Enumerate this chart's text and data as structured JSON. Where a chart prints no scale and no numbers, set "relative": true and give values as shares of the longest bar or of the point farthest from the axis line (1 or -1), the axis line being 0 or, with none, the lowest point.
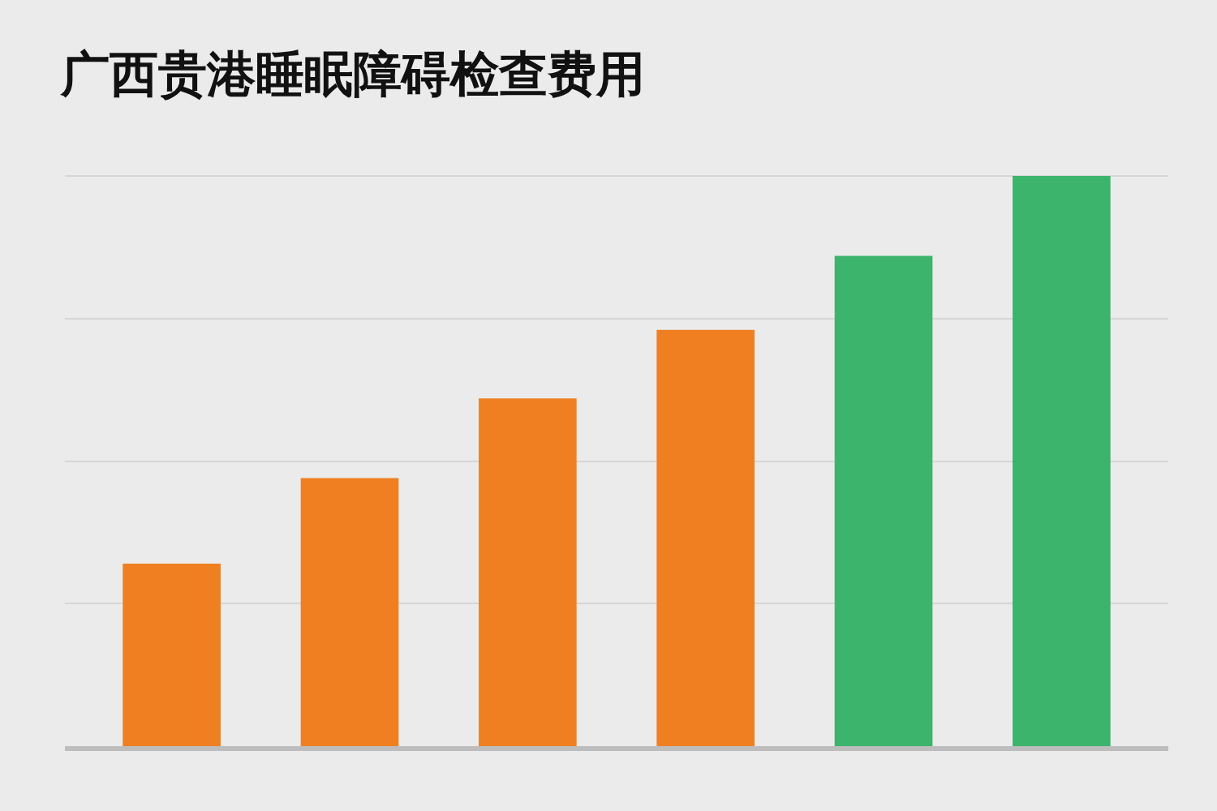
{
  "chart_data": {
    "type": "bar",
    "title": "广西贵港睡眠障碍检查费用",
    "relative": true,
    "grid": "y",
    "categories": [
      null,
      null,
      null,
      null,
      null,
      null
    ],
    "values": [
      0.32,
      0.47,
      0.61,
      0.73,
      0.86,
      1
    ],
    "colors": [
      "#f07f22",
      "#f07f22",
      "#f07f22",
      "#f07f22",
      "#3cb46b",
      "#3cb46b"
    ]
  }
}
